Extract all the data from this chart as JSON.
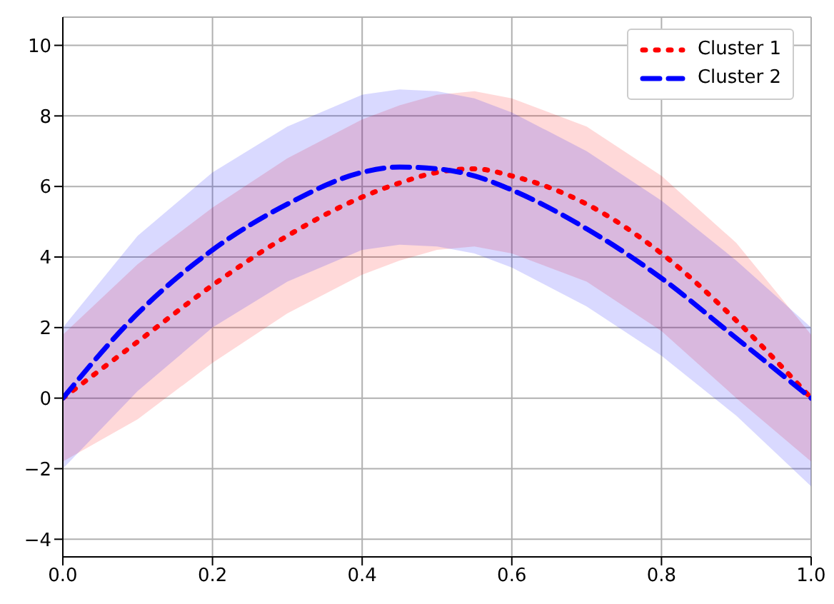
{
  "chart_data": {
    "type": "line",
    "x": [
      0,
      0.1,
      0.2,
      0.3,
      0.4,
      0.45,
      0.5,
      0.55,
      0.6,
      0.7,
      0.8,
      0.9,
      1.0
    ],
    "series": [
      {
        "name": "Cluster 1",
        "color": "#ff0000",
        "line_style": "dotted",
        "values": [
          0,
          1.6,
          3.2,
          4.6,
          5.7,
          6.1,
          6.4,
          6.5,
          6.3,
          5.5,
          4.1,
          2.2,
          0
        ],
        "lower": [
          -1.8,
          -0.6,
          1.0,
          2.4,
          3.5,
          3.9,
          4.2,
          4.3,
          4.1,
          3.3,
          1.9,
          0.0,
          -1.8
        ],
        "upper": [
          1.8,
          3.8,
          5.4,
          6.8,
          7.9,
          8.3,
          8.6,
          8.7,
          8.5,
          7.7,
          6.3,
          4.4,
          1.8
        ]
      },
      {
        "name": "Cluster 2",
        "color": "#0000ff",
        "line_style": "dashed",
        "values": [
          0,
          2.4,
          4.2,
          5.5,
          6.4,
          6.55,
          6.5,
          6.3,
          5.9,
          4.8,
          3.4,
          1.7,
          0
        ],
        "lower": [
          -2.0,
          0.2,
          2.0,
          3.3,
          4.2,
          4.35,
          4.3,
          4.1,
          3.7,
          2.6,
          1.2,
          -0.5,
          -2.5
        ],
        "upper": [
          2.0,
          4.6,
          6.4,
          7.7,
          8.6,
          8.75,
          8.7,
          8.5,
          8.1,
          7.0,
          5.6,
          3.9,
          2.0
        ]
      }
    ],
    "xlim": [
      0,
      1
    ],
    "xticks": [
      {
        "value": 0,
        "label": "0.0"
      },
      {
        "value": 0.2,
        "label": "0.2"
      },
      {
        "value": 0.4,
        "label": "0.4"
      },
      {
        "value": 0.6,
        "label": "0.6"
      },
      {
        "value": 0.8,
        "label": "0.8"
      },
      {
        "value": 1.0,
        "label": "1.0"
      }
    ],
    "ylim": [
      -4.5,
      10.8
    ],
    "yticks": [
      {
        "value": -4,
        "label": "−4"
      },
      {
        "value": -2,
        "label": "−2"
      },
      0,
      2,
      4,
      6,
      8,
      10
    ],
    "grid": true,
    "legend": "top right",
    "marker": "none"
  }
}
